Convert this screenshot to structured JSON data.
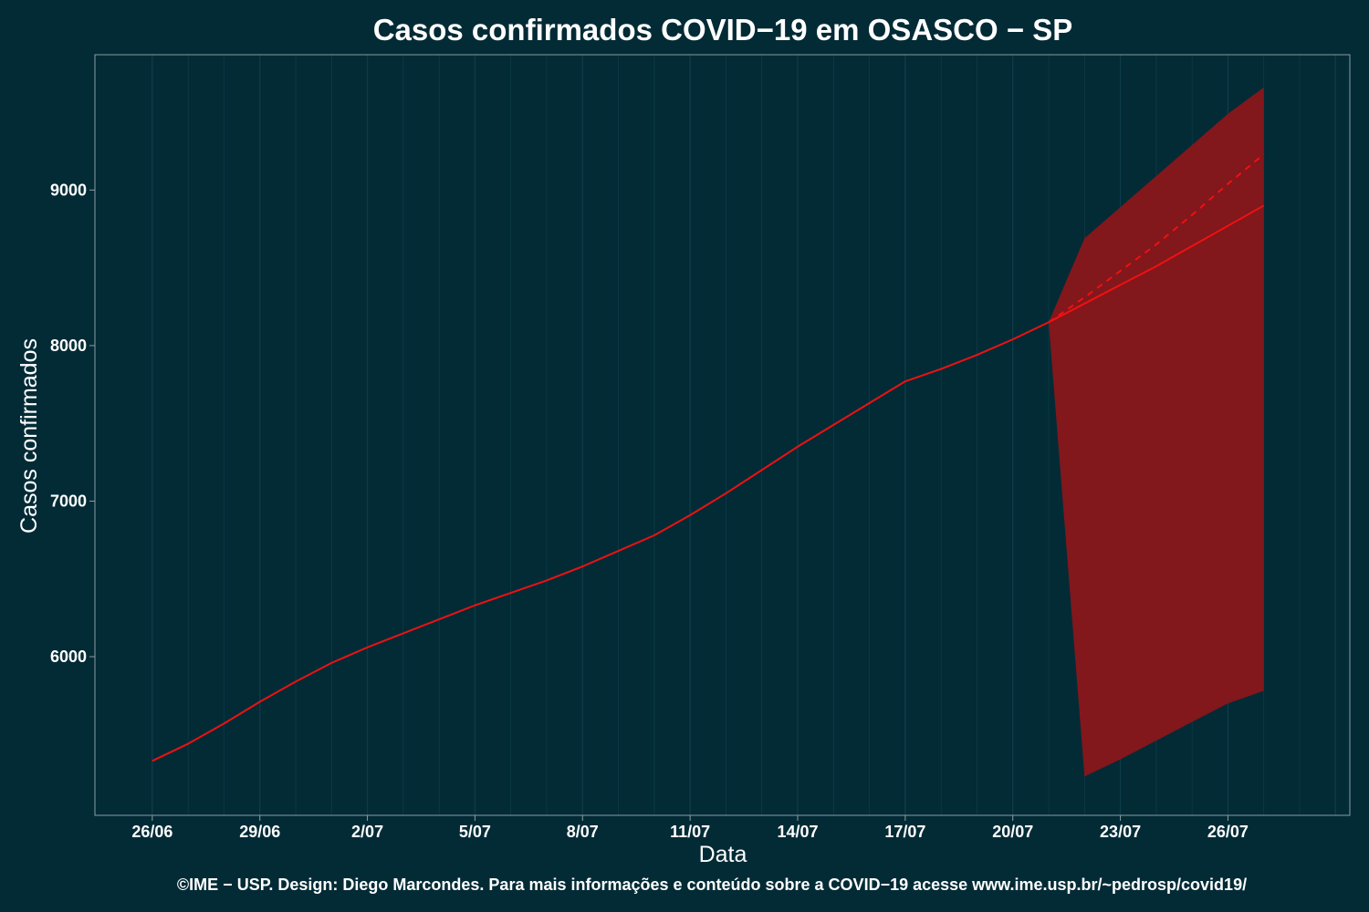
{
  "chart_data": {
    "type": "line",
    "title": "Casos confirmados COVID−19 em OSASCO − SP",
    "xlabel": "Data",
    "ylabel": "Casos confirmados",
    "x_tick_labels": [
      "26/06",
      "29/06",
      "2/07",
      "5/07",
      "8/07",
      "11/07",
      "14/07",
      "17/07",
      "20/07",
      "23/07",
      "26/07"
    ],
    "y_tick_labels": [
      "6000",
      "7000",
      "8000",
      "9000"
    ],
    "x_start_date": "2020-06-26",
    "x_range_days": [
      -1.6,
      33.4
    ],
    "ylim": [
      4980,
      9870
    ],
    "y_ticks": [
      6000,
      7000,
      8000,
      9000
    ],
    "grid": "vertical",
    "colors": {
      "background": "#022b36",
      "grid": "#0e3b48",
      "axis": "#8a9ea4",
      "line": "#ee1111",
      "band": "#82171c"
    },
    "series": [
      {
        "style": "solid",
        "days": [
          0,
          1,
          2,
          3,
          4,
          5,
          6,
          7,
          8,
          9,
          10,
          11,
          12,
          13,
          14,
          15,
          16,
          17,
          18,
          19,
          20,
          21,
          22,
          23,
          24,
          25,
          26,
          27
        ],
        "values": [
          5330,
          5440,
          5570,
          5710,
          5840,
          5960,
          6060,
          6150,
          6240,
          6330,
          6410,
          6490,
          6580,
          6680,
          6780,
          6910,
          7050,
          7200,
          7350,
          7490,
          7630,
          7770,
          7850,
          7940,
          8040,
          8150,
          8270,
          8390
        ]
      },
      {
        "style": "solid",
        "days": [
          25,
          26,
          27,
          28,
          29,
          30,
          31
        ],
        "values": [
          8150,
          8270,
          8390,
          8510,
          8640,
          8770,
          8900
        ]
      },
      {
        "style": "dashed",
        "days": [
          25,
          26,
          27,
          28,
          29,
          30,
          31
        ],
        "values": [
          8150,
          8310,
          8480,
          8650,
          8840,
          9040,
          9230
        ]
      }
    ],
    "band": {
      "days": [
        25,
        26,
        27,
        28,
        29,
        30,
        31
      ],
      "lower": [
        8150,
        5230,
        5340,
        5460,
        5580,
        5700,
        5780
      ],
      "upper": [
        8150,
        8690,
        8890,
        9090,
        9290,
        9490,
        9660
      ]
    }
  },
  "footer": "©IME − USP. Design: Diego Marcondes. Para mais informações e conteúdo sobre a COVID−19 acesse www.ime.usp.br/~pedrosp/covid19/"
}
